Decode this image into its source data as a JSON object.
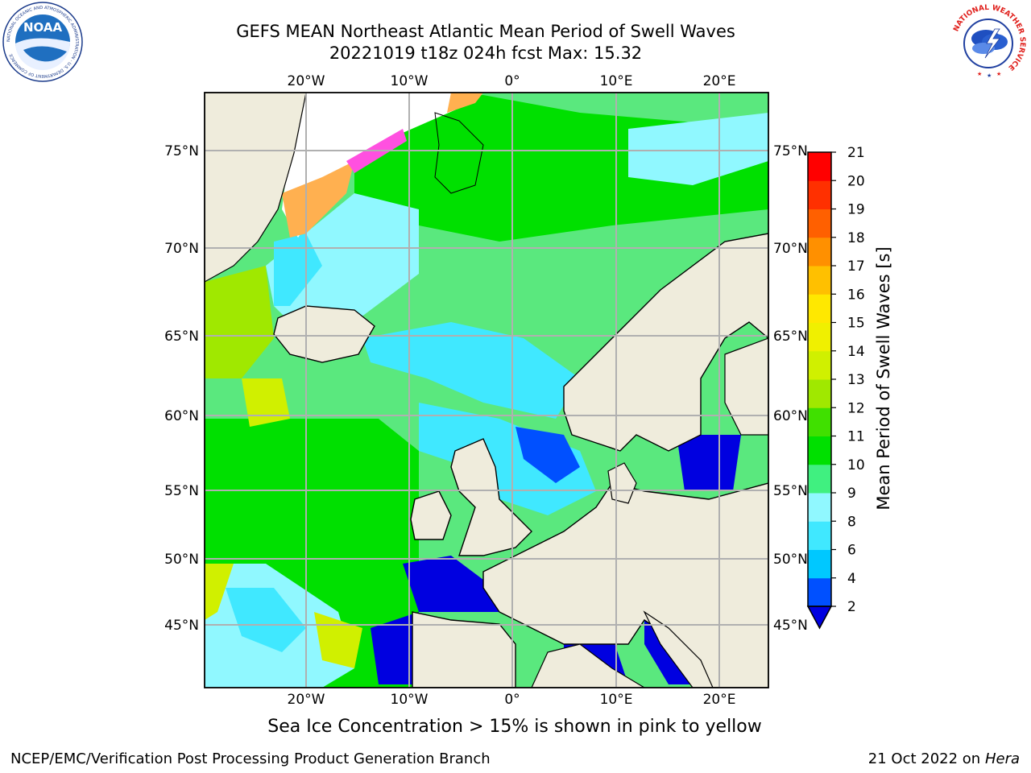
{
  "header": {
    "title_line1": "GEFS MEAN Northeast Atlantic Mean Period of Swell Waves",
    "title_line2": "20221019 t18z 024h fcst   Max: 15.32"
  },
  "logos": {
    "left": "NOAA",
    "left_ring_text": "NATIONAL OCEANIC AND ATMOSPHERIC ADMINISTRATION · U.S. DEPARTMENT OF COMMERCE",
    "right_ring_text": "NATIONAL WEATHER SERVICE"
  },
  "map": {
    "lon_labels": [
      "20°W",
      "10°W",
      "0°",
      "10°E",
      "20°E"
    ],
    "lat_labels": [
      "75°N",
      "70°N",
      "65°N",
      "60°N",
      "55°N",
      "50°N",
      "45°N"
    ],
    "land_color": "#efecdc",
    "grid_color": "#b0b0b0"
  },
  "colorbar": {
    "title": "Mean Period of Swell Waves [s]",
    "ticks": [
      "2",
      "4",
      "6",
      "8",
      "9",
      "10",
      "11",
      "12",
      "13",
      "14",
      "15",
      "16",
      "17",
      "18",
      "19",
      "20",
      "21"
    ],
    "colors": [
      "#0050ff",
      "#00c8ff",
      "#40e8ff",
      "#90f8ff",
      "#40f080",
      "#00e000",
      "#40e000",
      "#a0e800",
      "#d0f000",
      "#f0f000",
      "#ffe800",
      "#ffc000",
      "#ff9000",
      "#ff6000",
      "#ff3000",
      "#ff0000"
    ],
    "under_color": "#0000e0"
  },
  "footer": {
    "note": "Sea Ice Concentration > 15% is shown in pink to yellow",
    "left": "NCEP/EMC/Verification Post Processing Product Generation Branch",
    "date": "21 Oct 2022 on ",
    "machine": "Hera"
  }
}
